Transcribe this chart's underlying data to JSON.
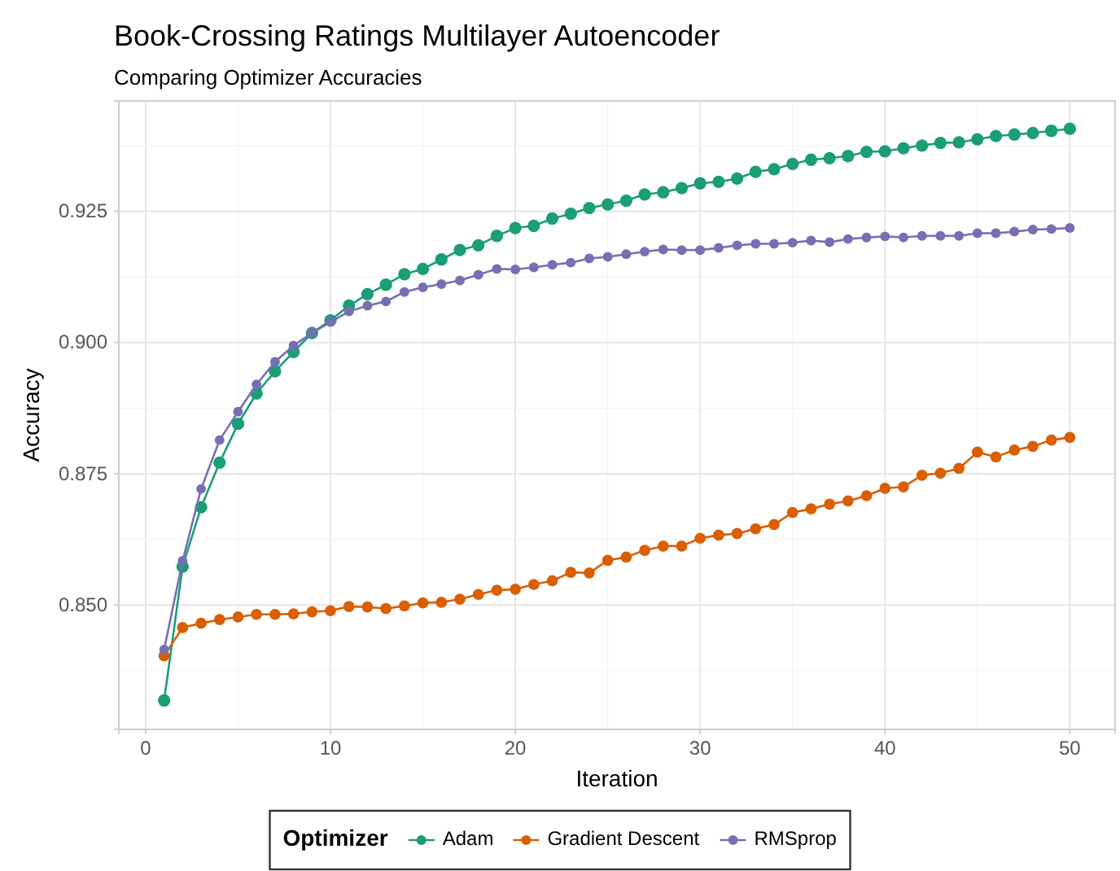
{
  "chart_data": {
    "type": "line",
    "title": "Book-Crossing Ratings Multilayer Autoencoder",
    "subtitle": "Comparing Optimizer Accuracies",
    "xlabel": "Iteration",
    "ylabel": "Accuracy",
    "legend_title": "Optimizer",
    "x": [
      1,
      2,
      3,
      4,
      5,
      6,
      7,
      8,
      9,
      10,
      11,
      12,
      13,
      14,
      15,
      16,
      17,
      18,
      19,
      20,
      21,
      22,
      23,
      24,
      25,
      26,
      27,
      28,
      29,
      30,
      31,
      32,
      33,
      34,
      35,
      36,
      37,
      38,
      39,
      40,
      41,
      42,
      43,
      44,
      45,
      46,
      47,
      48,
      49,
      50
    ],
    "series": [
      {
        "name": "Adam",
        "color": "#1b9e77",
        "values": [
          0.8318,
          0.8573,
          0.8686,
          0.8771,
          0.8845,
          0.8903,
          0.8945,
          0.8982,
          0.9018,
          0.9042,
          0.907,
          0.9092,
          0.911,
          0.913,
          0.914,
          0.9158,
          0.9176,
          0.9185,
          0.9203,
          0.9218,
          0.9222,
          0.9236,
          0.9245,
          0.9256,
          0.9263,
          0.927,
          0.9282,
          0.9286,
          0.9294,
          0.9303,
          0.9306,
          0.9312,
          0.9325,
          0.933,
          0.934,
          0.9348,
          0.9351,
          0.9355,
          0.9363,
          0.9364,
          0.937,
          0.9375,
          0.938,
          0.9381,
          0.9387,
          0.9393,
          0.9396,
          0.9399,
          0.9403,
          0.9407
        ]
      },
      {
        "name": "Gradient Descent",
        "color": "#d95f02",
        "values": [
          0.8403,
          0.8457,
          0.8465,
          0.8472,
          0.8477,
          0.8482,
          0.8482,
          0.8483,
          0.8487,
          0.8489,
          0.8497,
          0.8496,
          0.8493,
          0.8498,
          0.8504,
          0.8505,
          0.8511,
          0.852,
          0.8528,
          0.853,
          0.8539,
          0.8546,
          0.8562,
          0.8561,
          0.8585,
          0.8591,
          0.8604,
          0.8612,
          0.8612,
          0.8627,
          0.8633,
          0.8636,
          0.8645,
          0.8653,
          0.8676,
          0.8683,
          0.8692,
          0.8698,
          0.8708,
          0.8722,
          0.8725,
          0.8747,
          0.8751,
          0.876,
          0.8791,
          0.8782,
          0.8795,
          0.8802,
          0.8814,
          0.8819
        ]
      },
      {
        "name": "RMSprop",
        "color": "#7570b3",
        "values": [
          0.8415,
          0.8584,
          0.8721,
          0.8814,
          0.8868,
          0.892,
          0.8963,
          0.8994,
          0.9018,
          0.9039,
          0.9059,
          0.907,
          0.9078,
          0.9096,
          0.9105,
          0.9111,
          0.9118,
          0.9129,
          0.914,
          0.9139,
          0.9143,
          0.9148,
          0.9152,
          0.916,
          0.9163,
          0.9168,
          0.9173,
          0.9177,
          0.9176,
          0.9176,
          0.918,
          0.9185,
          0.9188,
          0.9188,
          0.919,
          0.9194,
          0.9191,
          0.9197,
          0.92,
          0.9202,
          0.92,
          0.9203,
          0.9203,
          0.9203,
          0.9208,
          0.9208,
          0.9211,
          0.9215,
          0.9216,
          0.9218
        ]
      }
    ],
    "xlim": [
      -1.45,
      52.45
    ],
    "xticks": [
      0,
      10,
      20,
      30,
      40,
      50
    ],
    "ylim": [
      0.8263,
      0.946
    ],
    "yticks": [
      {
        "value": 0.85,
        "label": "0.850"
      },
      {
        "value": 0.875,
        "label": "0.875"
      },
      {
        "value": 0.9,
        "label": "0.900"
      },
      {
        "value": 0.925,
        "label": "0.925"
      }
    ],
    "grid": true,
    "legend": "bottom",
    "marker": "circle",
    "line_style": "solid"
  }
}
